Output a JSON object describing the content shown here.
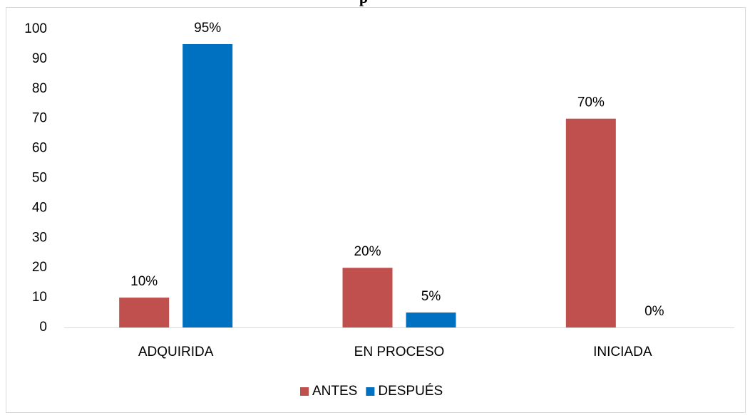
{
  "chart_data": {
    "type": "bar",
    "title": "p",
    "categories": [
      "ADQUIRIDA",
      "EN PROCESO",
      "INICIADA"
    ],
    "series": [
      {
        "name": "ANTES",
        "color": "#c0504d",
        "values": [
          10,
          20,
          70
        ],
        "value_labels": [
          "10%",
          "20%",
          "70%"
        ]
      },
      {
        "name": "DESPUÉS",
        "color": "#0070c0",
        "values": [
          95,
          5,
          0
        ],
        "value_labels": [
          "95%",
          "5%",
          "0%"
        ]
      }
    ],
    "ylim": [
      0,
      100
    ],
    "yticks": [
      0,
      10,
      20,
      30,
      40,
      50,
      60,
      70,
      80,
      90,
      100
    ],
    "grid": false,
    "legend": "bottom"
  }
}
